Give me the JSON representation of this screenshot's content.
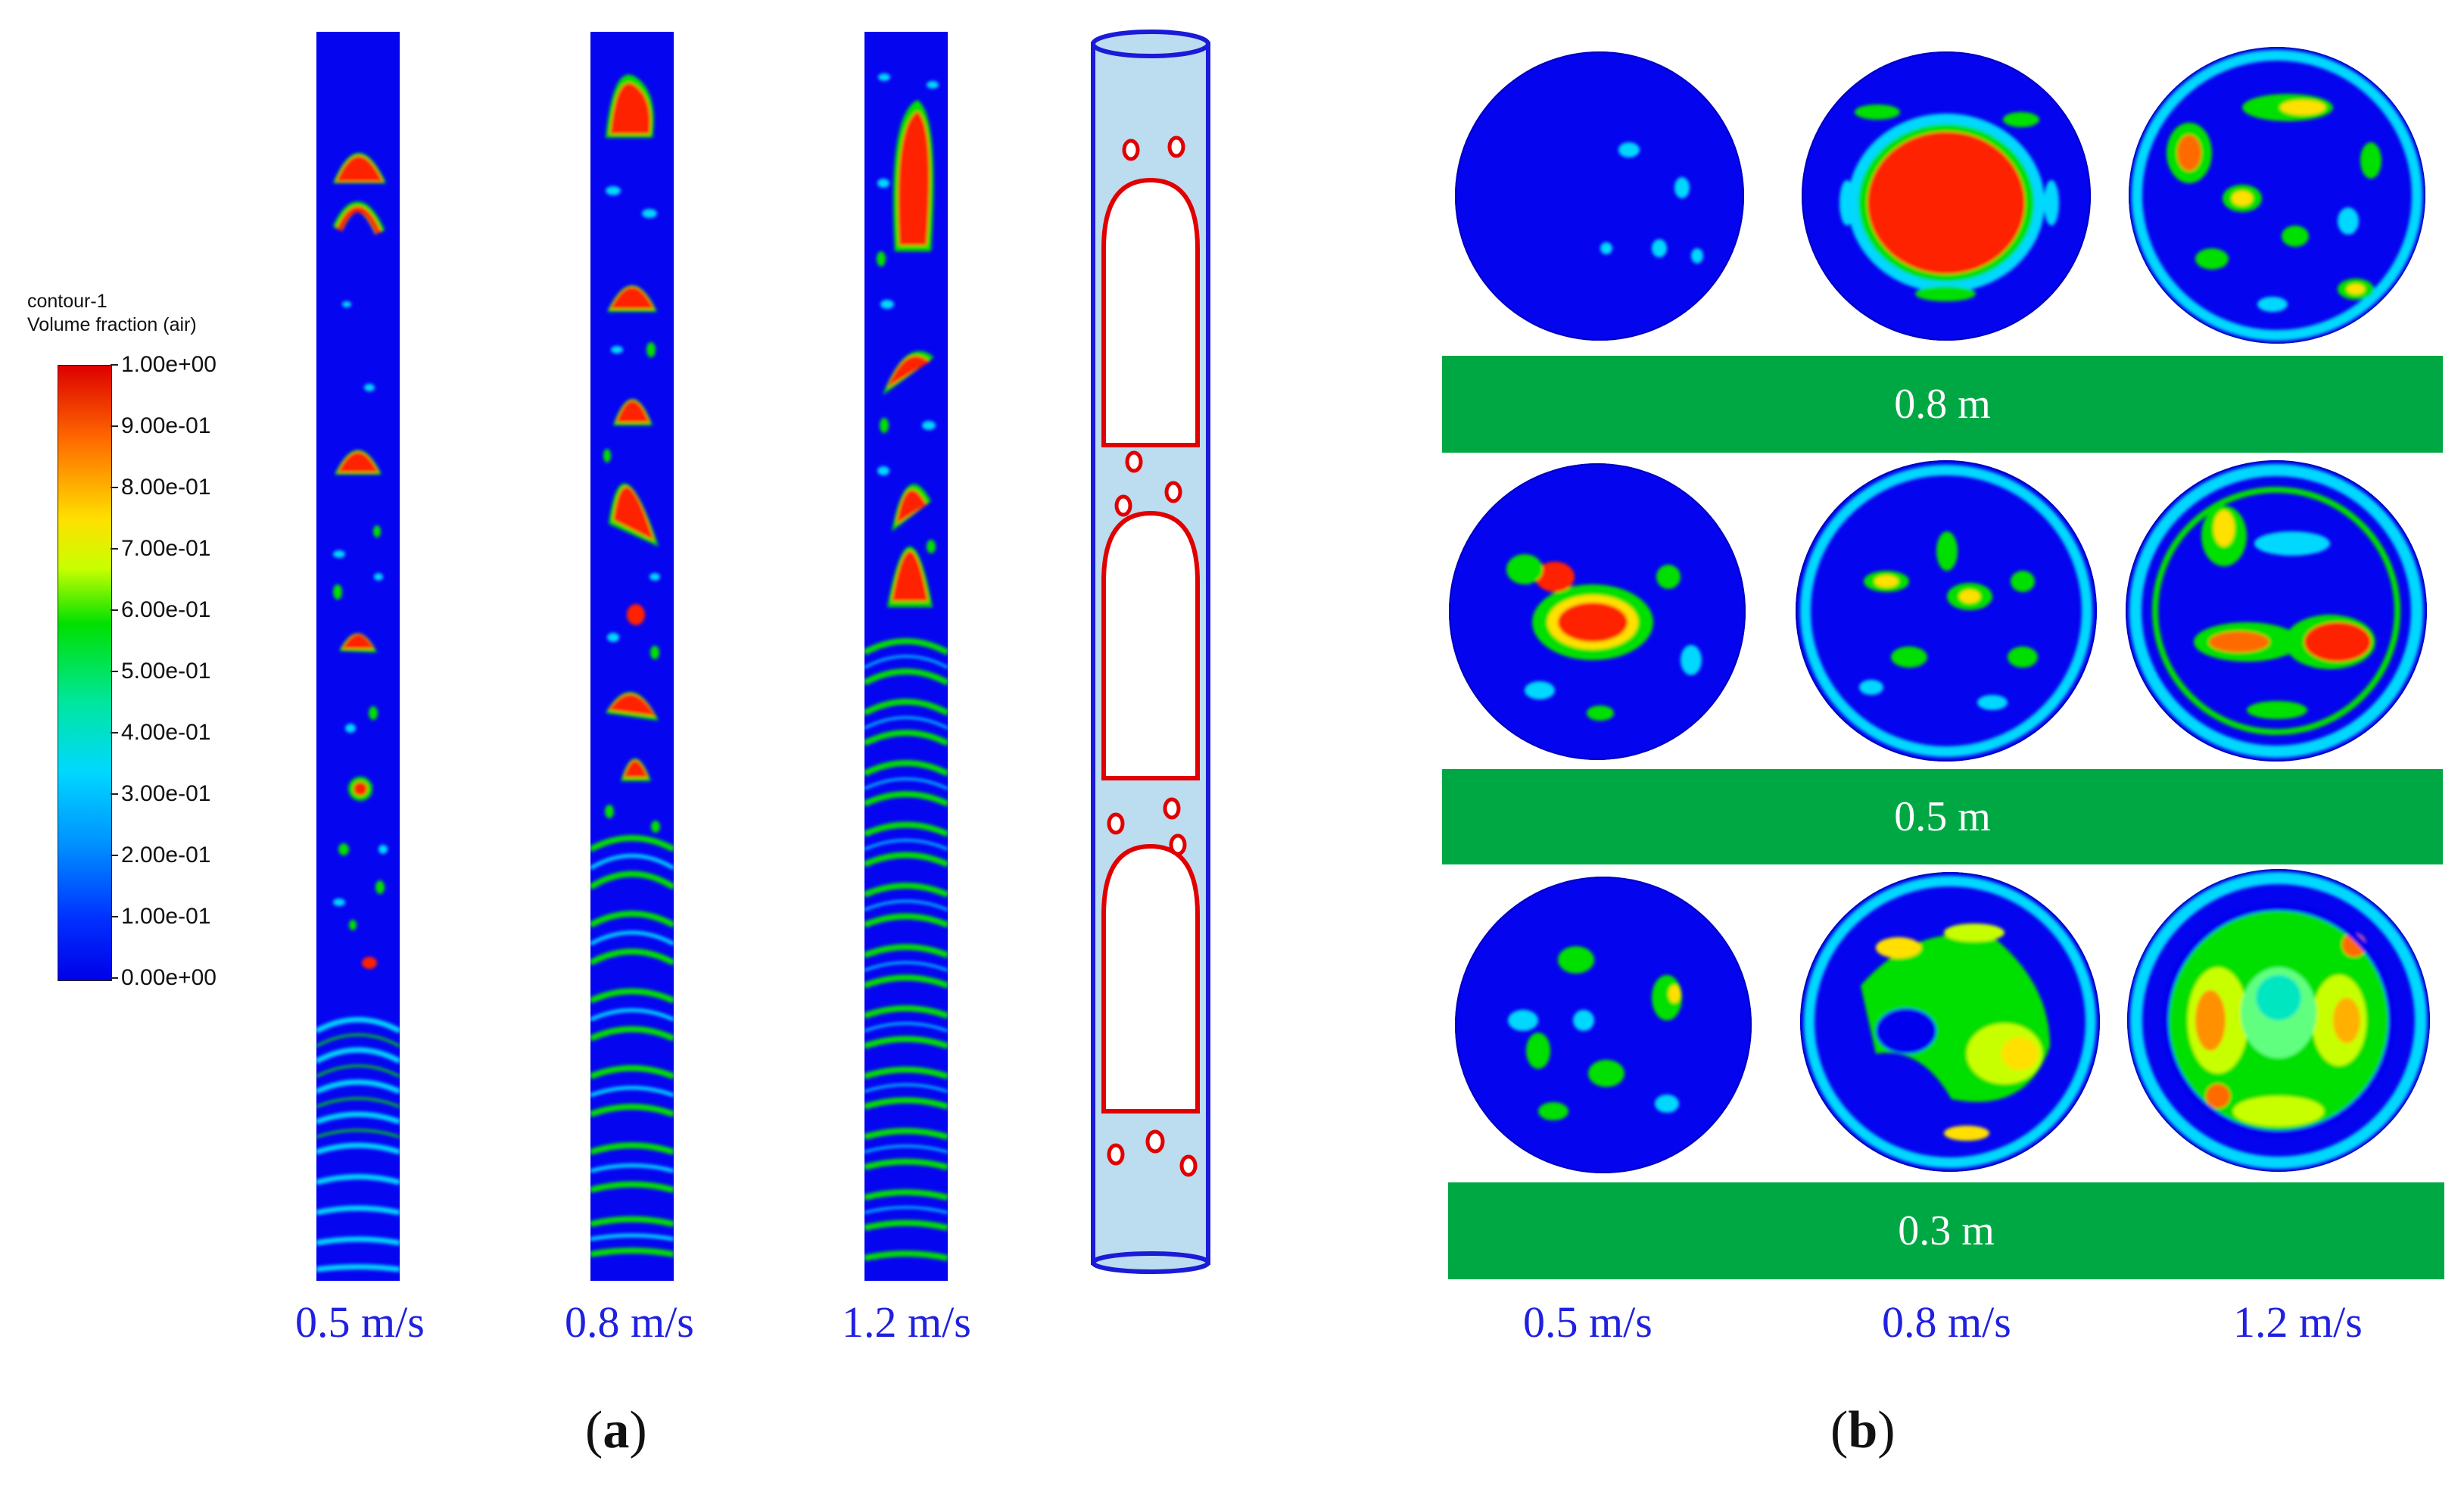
{
  "legend": {
    "title_line1": "contour-1",
    "title_line2": "Volume fraction (air)",
    "ticks": [
      "1.00e+00",
      "9.00e-01",
      "8.00e-01",
      "7.00e-01",
      "6.00e-01",
      "5.00e-01",
      "4.00e-01",
      "3.00e-01",
      "2.00e-01",
      "1.00e-01",
      "0.00e+00"
    ],
    "colors": [
      "#dd0000",
      "#ff6a00",
      "#ffe000",
      "#c8ff00",
      "#00e000",
      "#00e6a0",
      "#00d8ff",
      "#0090ff",
      "#0030ff",
      "#0000e8"
    ]
  },
  "panel_a": {
    "speed_labels": [
      "0.5 m/s",
      "0.8  m/s",
      "1.2 m/s"
    ],
    "label_open": "(",
    "label_letter": "a",
    "label_close": ")"
  },
  "panel_b": {
    "heights": [
      "0.8 m",
      "0.5 m",
      "0.3 m"
    ],
    "speed_labels": [
      "0.5 m/s",
      "0.8 m/s",
      "1.2 m/s"
    ],
    "label_open": "(",
    "label_letter": "b",
    "label_close": ")"
  }
}
